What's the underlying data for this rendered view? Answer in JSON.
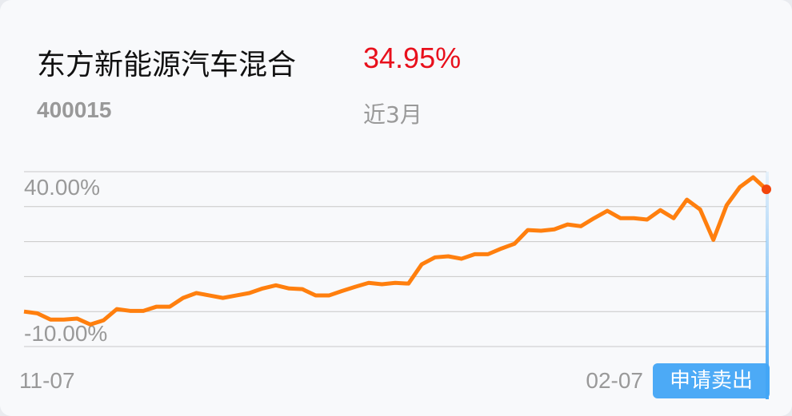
{
  "fund": {
    "name": "东方新能源汽车混合",
    "code": "400015",
    "return": "34.95%",
    "period": "近3月"
  },
  "sell_button": "申请卖出",
  "colors": {
    "line": "#ff7f0e",
    "return": "#e8101c",
    "marker": "#f2460d",
    "button": "#42a5f5"
  },
  "chart_data": {
    "type": "line",
    "ylim": [
      -10,
      40
    ],
    "yticks": [
      40,
      30,
      20,
      10,
      0,
      -10
    ],
    "ytick_labels_shown": [
      "40.00%",
      "-10.00%"
    ],
    "xtick_labels": [
      "11-07",
      "02-07"
    ],
    "grid": true,
    "values": [
      0,
      -0.5,
      -2.3,
      -2.3,
      -2,
      -3.7,
      -2.5,
      0.7,
      0.2,
      0.2,
      1.4,
      1.4,
      3.9,
      5.3,
      4.6,
      3.9,
      4.6,
      5.3,
      6.6,
      7.5,
      6.6,
      6.4,
      4.6,
      4.6,
      5.9,
      7.1,
      8.2,
      7.8,
      8.2,
      8.0,
      13.5,
      15.5,
      15.8,
      15.1,
      16.4,
      16.4,
      18.0,
      19.4,
      23.3,
      23.1,
      23.5,
      24.9,
      24.4,
      26.7,
      28.8,
      26.7,
      26.7,
      26.3,
      29.0,
      26.7,
      32.0,
      29.2,
      20.5,
      30.4,
      35.6,
      38.4,
      34.95
    ]
  }
}
